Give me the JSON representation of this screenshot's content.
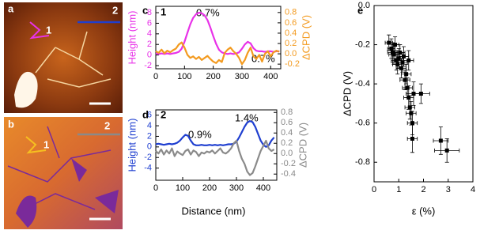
{
  "images": [
    {
      "panel_label": "a",
      "markers": [
        "1",
        "2"
      ]
    },
    {
      "panel_label": "b",
      "markers": [
        "1",
        "2"
      ]
    }
  ],
  "chart_data": [
    {
      "type": "line",
      "panel_label": "c",
      "profile_label": "1",
      "ylabel": "Height (nm)",
      "y2label": "ΔCPD (V)",
      "xlim": [
        0,
        435
      ],
      "xticks": [
        0,
        100,
        200,
        300,
        400
      ],
      "ylim": [
        -2.6,
        9.2
      ],
      "yticks": [
        -2,
        0,
        2,
        4,
        6,
        8
      ],
      "y2lim": [
        -0.29,
        0.92
      ],
      "y2ticks": [
        -0.2,
        {
          "value": 0,
          "label": "0.0"
        },
        0.2,
        0.4,
        0.6,
        0.8
      ],
      "annotations": [
        "0.7%",
        "0.7%"
      ],
      "x": [
        0,
        10,
        20,
        30,
        40,
        50,
        60,
        70,
        80,
        90,
        100,
        110,
        120,
        130,
        140,
        150,
        160,
        170,
        180,
        190,
        200,
        210,
        220,
        230,
        240,
        250,
        260,
        270,
        280,
        290,
        300,
        310,
        320,
        330,
        340,
        350,
        360,
        370,
        380,
        390,
        400,
        410,
        420,
        430
      ],
      "series": [
        {
          "color": "#e832e8",
          "values": [
            0.3,
            0.2,
            0.3,
            0.2,
            0.3,
            0.2,
            0.3,
            0.4,
            0.6,
            1.2,
            2.5,
            4.2,
            5.8,
            7.0,
            7.7,
            8.0,
            7.9,
            7.5,
            6.6,
            5.2,
            3.6,
            2.1,
            1.0,
            0.5,
            0.3,
            0.2,
            0.3,
            0.2,
            0.3,
            0.5,
            1.2,
            2.0,
            2.5,
            2.2,
            1.3,
            0.8,
            0.7,
            0.7,
            0.6,
            0.7,
            0.7,
            0.6,
            0.7,
            0.7
          ]
        },
        {
          "color": "#f39a1f",
          "axis": "y2",
          "values": [
            0.05,
            0.02,
            0.08,
            0.01,
            0.06,
            0.03,
            0.07,
            0.1,
            0.18,
            0.22,
            0.12,
            -0.02,
            -0.08,
            -0.05,
            -0.1,
            -0.06,
            -0.12,
            -0.08,
            -0.04,
            -0.1,
            -0.15,
            -0.18,
            -0.12,
            -0.16,
            0.02,
            0.08,
            0.12,
            0.05,
            0.0,
            -0.08,
            -0.2,
            -0.12,
            0.02,
            0.12,
            -0.05,
            -0.1,
            -0.02,
            -0.15,
            0.0,
            0.05,
            -0.05,
            0.03,
            0.06,
            0.04
          ]
        }
      ]
    },
    {
      "type": "line",
      "panel_label": "d",
      "profile_label": "2",
      "ylabel": "Height (nm)",
      "y2label": "ΔCPD (V)",
      "xlabel": "Distance (nm)",
      "xlim": [
        0,
        450
      ],
      "xticks": [
        0,
        100,
        200,
        300,
        400
      ],
      "ylim": [
        -6.3,
        7.0
      ],
      "yticks": [
        -4,
        -2,
        0,
        2,
        4,
        6
      ],
      "y2lim": [
        -0.52,
        0.85
      ],
      "y2ticks": [
        -0.4,
        -0.2,
        {
          "value": 0,
          "label": "0.0"
        },
        0.2,
        0.4,
        0.6,
        0.8
      ],
      "annotations": [
        "0.9%",
        "1.4%"
      ],
      "x": [
        0,
        10,
        20,
        30,
        40,
        50,
        60,
        70,
        80,
        90,
        100,
        110,
        120,
        130,
        140,
        150,
        160,
        170,
        180,
        190,
        200,
        210,
        220,
        230,
        240,
        250,
        260,
        270,
        280,
        290,
        300,
        310,
        320,
        330,
        340,
        350,
        360,
        370,
        380,
        390,
        400,
        410,
        420,
        430,
        440
      ],
      "series": [
        {
          "color": "#1f3fd0",
          "values": [
            0.5,
            0.6,
            0.5,
            0.4,
            0.5,
            0.6,
            0.5,
            0.6,
            0.8,
            1.2,
            1.8,
            2.3,
            2.1,
            1.2,
            0.5,
            0.3,
            0.3,
            0.4,
            0.3,
            0.3,
            0.4,
            0.3,
            0.4,
            0.3,
            0.4,
            0.3,
            0.4,
            0.5,
            0.5,
            0.6,
            1.0,
            1.8,
            2.8,
            3.8,
            4.6,
            4.9,
            4.7,
            3.8,
            2.5,
            1.2,
            0.4,
            0.0,
            0.3,
            1.2,
            1.8
          ]
        },
        {
          "color": "#8a8a8a",
          "axis": "y2",
          "values": [
            0.05,
            0.0,
            0.08,
            -0.02,
            0.06,
            0.0,
            0.1,
            -0.05,
            0.04,
            0.0,
            -0.03,
            0.05,
            0.08,
            -0.02,
            0.06,
            0.03,
            -0.05,
            0.02,
            0.0,
            0.04,
            0.02,
            0.06,
            0.0,
            0.05,
            0.1,
            0.02,
            0.0,
            0.04,
            0.1,
            0.2,
            0.25,
            0.05,
            -0.1,
            -0.2,
            -0.35,
            -0.42,
            -0.38,
            -0.25,
            -0.1,
            0.05,
            0.15,
            0.25,
            0.1,
            0.05,
            0.08
          ]
        }
      ]
    },
    {
      "type": "scatter",
      "panel_label": "e",
      "ylabel": "ΔCPD (V)",
      "xlabel": "ε (%)",
      "xlim": [
        0,
        4
      ],
      "xticks": [
        0,
        1,
        2,
        3,
        4
      ],
      "ylim": [
        -0.9,
        0
      ],
      "yticks": [
        -0.8,
        -0.6,
        -0.4,
        -0.2,
        {
          "value": 0,
          "label": "0.0"
        }
      ],
      "series": [
        {
          "color": "#000000",
          "x": [
            0.6,
            0.7,
            0.8,
            0.85,
            0.9,
            0.95,
            1.0,
            1.05,
            1.1,
            1.15,
            1.2,
            0.75,
            1.3,
            1.35,
            1.4,
            1.45,
            1.5,
            1.55,
            1.6,
            1.9,
            1.55,
            2.7,
            2.95,
            1.25,
            1.4
          ],
          "values": [
            -0.19,
            -0.22,
            -0.25,
            -0.2,
            -0.28,
            -0.3,
            -0.27,
            -0.24,
            -0.32,
            -0.29,
            -0.26,
            -0.24,
            -0.35,
            -0.42,
            -0.47,
            -0.52,
            -0.55,
            -0.6,
            -0.45,
            -0.45,
            -0.68,
            -0.69,
            -0.74,
            -0.38,
            -0.28
          ],
          "xerr": [
            0.15,
            0.15,
            0.2,
            0.15,
            0.2,
            0.2,
            0.2,
            0.2,
            0.2,
            0.2,
            0.2,
            0.2,
            0.2,
            0.2,
            0.2,
            0.2,
            0.2,
            0.2,
            0.3,
            0.35,
            0.2,
            0.3,
            0.5,
            0.2,
            0.2
          ],
          "yerr": [
            0.04,
            0.05,
            0.05,
            0.04,
            0.05,
            0.05,
            0.05,
            0.04,
            0.05,
            0.05,
            0.05,
            0.05,
            0.05,
            0.05,
            0.06,
            0.06,
            0.06,
            0.06,
            0.06,
            0.05,
            0.07,
            0.07,
            0.06,
            0.05,
            0.05
          ]
        }
      ]
    }
  ]
}
